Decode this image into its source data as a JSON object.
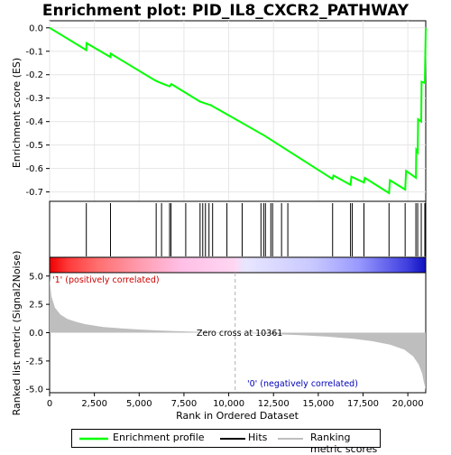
{
  "title": "Enrichment plot: PID_IL8_CXCR2_PATHWAY",
  "colors": {
    "es_line": "#00ff00",
    "hits": "#000000",
    "metric_fill": "#bebebe",
    "pos_label": "#cc0000",
    "neg_label": "#0000bb",
    "zero_line": "#b0b0b0"
  },
  "labels": {
    "es_ylabel": "Enrichment score (ES)",
    "metric_ylabel": "Ranked list metric (Signal2Noise)",
    "xlabel": "Rank in Ordered Dataset",
    "pos_corr": "'1' (positively correlated)",
    "neg_corr": "'0' (negatively correlated)",
    "zero_cross": "Zero cross at 10361"
  },
  "legend": {
    "items": [
      "Enrichment profile",
      "Hits",
      "Ranking metric scores"
    ]
  },
  "chart_data": {
    "type": "line",
    "title": "Enrichment plot: PID_IL8_CXCR2_PATHWAY",
    "xlabel": "Rank in Ordered Dataset",
    "xlim": [
      0,
      21000
    ],
    "x_ticks": [
      0,
      2500,
      5000,
      7500,
      10000,
      12500,
      15000,
      17500,
      20000
    ],
    "x_tick_labels": [
      "0",
      "2,500",
      "5,000",
      "7,500",
      "10,000",
      "12,500",
      "15,000",
      "17,500",
      "20,000"
    ],
    "es_panel": {
      "ylabel": "Enrichment score (ES)",
      "ylim": [
        -0.74,
        0.03
      ],
      "y_ticks": [
        0.0,
        -0.1,
        -0.2,
        -0.3,
        -0.4,
        -0.5,
        -0.6,
        -0.7
      ],
      "y_tick_labels": [
        "0.0",
        "-0.1",
        "-0.2",
        "-0.3",
        "-0.4",
        "-0.5",
        "-0.6",
        "-0.7"
      ],
      "series": [
        {
          "name": "Enrichment profile",
          "x": [
            0,
            2050,
            2060,
            3400,
            3410,
            5900,
            6200,
            6700,
            6800,
            8400,
            9000,
            12000,
            15800,
            15850,
            16800,
            16850,
            17550,
            17600,
            18950,
            19000,
            19850,
            19900,
            20450,
            20470,
            20550,
            20570,
            20750,
            20770,
            20950,
            21000
          ],
          "y": [
            0.0,
            -0.095,
            -0.065,
            -0.125,
            -0.11,
            -0.225,
            -0.235,
            -0.25,
            -0.24,
            -0.315,
            -0.33,
            -0.46,
            -0.645,
            -0.63,
            -0.67,
            -0.635,
            -0.66,
            -0.64,
            -0.705,
            -0.65,
            -0.69,
            -0.61,
            -0.64,
            -0.52,
            -0.53,
            -0.39,
            -0.4,
            -0.23,
            -0.235,
            0.0
          ]
        }
      ]
    },
    "hits": [
      2050,
      3400,
      5950,
      6250,
      6700,
      6780,
      7600,
      8400,
      8550,
      8700,
      8900,
      9100,
      9900,
      10750,
      11800,
      11950,
      12050,
      12350,
      12450,
      12950,
      13300,
      15800,
      16800,
      16900,
      17550,
      18950,
      19850,
      20450,
      20550,
      20750,
      20950
    ],
    "metric_panel": {
      "ylabel": "Ranked list metric (Signal2Noise)",
      "ylim": [
        -5.3,
        5.3
      ],
      "y_ticks": [
        5.0,
        2.5,
        0.0,
        -2.5,
        -5.0
      ],
      "y_tick_labels": [
        "5.0",
        "2.5",
        "0.0",
        "-2.5",
        "-5.0"
      ],
      "zero_cross": 10361,
      "x": [
        0,
        100,
        300,
        600,
        1000,
        1500,
        2000,
        3000,
        4000,
        5000,
        6000,
        7000,
        8000,
        9000,
        10361,
        12000,
        14000,
        15500,
        17000,
        18000,
        19000,
        19800,
        20300,
        20600,
        20800,
        20900,
        21000
      ],
      "values": [
        4.8,
        3.2,
        2.2,
        1.6,
        1.2,
        0.95,
        0.75,
        0.5,
        0.38,
        0.28,
        0.2,
        0.14,
        0.09,
        0.05,
        0.0,
        -0.1,
        -0.22,
        -0.35,
        -0.55,
        -0.75,
        -1.05,
        -1.5,
        -2.1,
        -2.8,
        -3.6,
        -4.4,
        -5.0
      ]
    }
  }
}
